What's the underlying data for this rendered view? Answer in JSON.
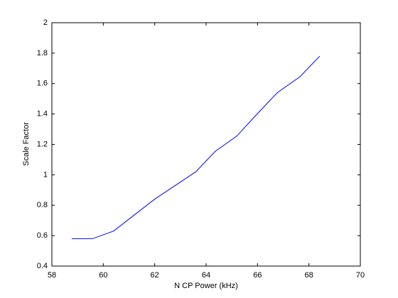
{
  "chart_data": {
    "type": "line",
    "xlabel": "N CP Power (kHz)",
    "ylabel": "Scale Factor",
    "x": [
      58.77,
      59.58,
      60.4,
      62.0,
      63.6,
      64.36,
      65.19,
      65.93,
      66.77,
      67.65,
      68.42
    ],
    "series": [
      {
        "color": "#0000ff",
        "values": [
          0.58,
          0.58,
          0.63,
          0.84,
          1.02,
          1.155,
          1.254,
          1.39,
          1.54,
          1.645,
          1.78
        ]
      }
    ],
    "xlim": [
      58,
      70
    ],
    "xticks": [
      58,
      60,
      62,
      64,
      66,
      68,
      70
    ],
    "ylim": [
      0.4,
      2
    ],
    "yticks": [
      0.4,
      0.6,
      0.8,
      1,
      1.2,
      1.4,
      1.6,
      1.8,
      2
    ],
    "grid": false
  }
}
